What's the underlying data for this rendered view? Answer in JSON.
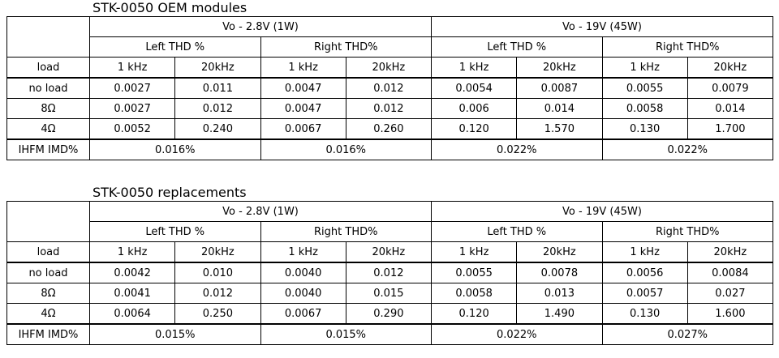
{
  "tables": [
    {
      "title": "STK-0050 OEM modules",
      "groups": [
        "Vo - 2.8V (1W)",
        "Vo - 19V (45W)"
      ],
      "subgroups": [
        "Left THD %",
        "Right THD%",
        "Left THD %",
        "Right THD%"
      ],
      "load_header": "load",
      "freqs": [
        "1 kHz",
        "20kHz",
        "1 kHz",
        "20kHz",
        "1 kHz",
        "20kHz",
        "1 kHz",
        "20kHz"
      ],
      "rows": [
        {
          "label": "no load",
          "values": [
            "0.0027",
            "0.011",
            "0.0047",
            "0.012",
            "0.0054",
            "0.0087",
            "0.0055",
            "0.0079"
          ]
        },
        {
          "label": "8Ω",
          "values": [
            "0.0027",
            "0.012",
            "0.0047",
            "0.012",
            "0.006",
            "0.014",
            "0.0058",
            "0.014"
          ]
        },
        {
          "label": "4Ω",
          "values": [
            "0.0052",
            "0.240",
            "0.0067",
            "0.260",
            "0.120",
            "1.570",
            "0.130",
            "1.700"
          ]
        }
      ],
      "imd": {
        "label": "IHFM IMD%",
        "values": [
          "0.016%",
          "0.016%",
          "0.022%",
          "0.022%"
        ]
      }
    },
    {
      "title": "STK-0050 replacements",
      "groups": [
        "Vo - 2.8V (1W)",
        "Vo - 19V (45W)"
      ],
      "subgroups": [
        "Left THD %",
        "Right THD%",
        "Left THD %",
        "Right THD%"
      ],
      "load_header": "load",
      "freqs": [
        "1 kHz",
        "20kHz",
        "1 kHz",
        "20kHz",
        "1 kHz",
        "20kHz",
        "1 kHz",
        "20kHz"
      ],
      "rows": [
        {
          "label": "no load",
          "values": [
            "0.0042",
            "0.010",
            "0.0040",
            "0.012",
            "0.0055",
            "0.0078",
            "0.0056",
            "0.0084"
          ]
        },
        {
          "label": "8Ω",
          "values": [
            "0.0041",
            "0.012",
            "0.0040",
            "0.015",
            "0.0058",
            "0.013",
            "0.0057",
            "0.027"
          ]
        },
        {
          "label": "4Ω",
          "values": [
            "0.0064",
            "0.250",
            "0.0067",
            "0.290",
            "0.120",
            "1.490",
            "0.130",
            "1.600"
          ]
        }
      ],
      "imd": {
        "label": "IHFM IMD%",
        "values": [
          "0.015%",
          "0.015%",
          "0.022%",
          "0.027%"
        ]
      }
    }
  ]
}
